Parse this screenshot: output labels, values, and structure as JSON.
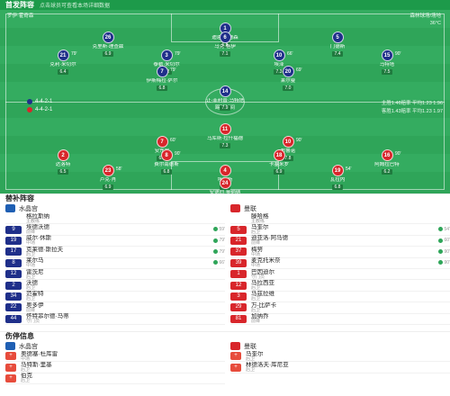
{
  "header": {
    "title": "首发阵容",
    "subtitle": "点击球员可查看本场详细数据"
  },
  "pitch": {
    "home_info_left": "罗伊·霍奇森",
    "home_info_right": "森林球场/场地",
    "away_info_right": "36°C",
    "home_formation": "4-4-2-1",
    "away_formation": "4-4-2-1",
    "home_stats": "主胜1.46赔率  平均1.23 1.96",
    "away_stats": "客胜1.43赔率  平均1.23 1.97",
    "center_label": "踢球时间",
    "top_players": [
      {
        "num": "1",
        "name": "迪恩·亨德森",
        "rating": "6.8",
        "extra": ""
      },
      {
        "num": "26",
        "name": "克里斯·理查兹",
        "rating": "6.9",
        "extra": ""
      },
      {
        "num": "6",
        "name": "马克·格伊",
        "rating": "7.1",
        "extra": ""
      },
      {
        "num": "5",
        "name": "门德斯",
        "rating": "7.4",
        "extra": ""
      },
      {
        "num": "21",
        "name": "克利·米切尔",
        "rating": "6.4",
        "extra": "79'"
      },
      {
        "num": "3",
        "name": "泰勒·米切尔",
        "rating": "7.2",
        "extra": "79'"
      },
      {
        "num": "10",
        "name": "埃泽",
        "rating": "7.3",
        "extra": "66'"
      },
      {
        "num": "15",
        "name": "马特塔",
        "rating": "7.5",
        "extra": "90'"
      },
      {
        "num": "7",
        "name": "伊斯梅拉·萨尔",
        "rating": "6.8",
        "extra": "79'"
      },
      {
        "num": "20",
        "name": "莱尔曼",
        "rating": "7.0",
        "extra": "69'"
      },
      {
        "num": "14",
        "name": "让-菲利普·马特塔",
        "rating": "7.9",
        "extra": ""
      }
    ],
    "bottom_players": [
      {
        "num": "11",
        "name": "马库斯·拉什福德",
        "rating": "7.3",
        "extra": ""
      },
      {
        "num": "7",
        "name": "安东尼",
        "rating": "6.6",
        "extra": "60'"
      },
      {
        "num": "10",
        "name": "布鲁诺",
        "rating": "7.8",
        "extra": "90'"
      },
      {
        "num": "2",
        "name": "达洛特",
        "rating": "6.5",
        "extra": ""
      },
      {
        "num": "8",
        "name": "费尔南德斯",
        "rating": "6.8",
        "extra": "90'"
      },
      {
        "num": "18",
        "name": "卡塞米罗",
        "rating": "6.9",
        "extra": ""
      },
      {
        "num": "16",
        "name": "阿姆拉巴特",
        "rating": "6.2",
        "extra": "90'"
      },
      {
        "num": "23",
        "name": "卢克·肖",
        "rating": "6.9",
        "extra": "58'"
      },
      {
        "num": "4",
        "name": "埃文斯",
        "rating": "7.5",
        "extra": ""
      },
      {
        "num": "19",
        "name": "瓦拉内",
        "rating": "6.8",
        "extra": "54'"
      },
      {
        "num": "24",
        "name": "安德烈·奥纳纳",
        "rating": "6.6",
        "extra": ""
      }
    ]
  },
  "subs": {
    "title": "替补阵容",
    "home": {
      "team": "水晶宫",
      "coach": "格拉斯纳",
      "coach_role": "主教练",
      "rows": [
        {
          "num": "9",
          "name": "埃德沃德",
          "pos": "前锋",
          "tag": "59'"
        },
        {
          "num": "19",
          "name": "威尔·休斯",
          "pos": "中场",
          "tag": "79'"
        },
        {
          "num": "17",
          "name": "克莱德·斯拉夫",
          "pos": "后卫",
          "tag": "79'"
        },
        {
          "num": "8",
          "name": "莱尔马",
          "pos": "中场",
          "tag": "66'"
        },
        {
          "num": "12",
          "name": "雷茨尼",
          "pos": "后卫",
          "tag": ""
        },
        {
          "num": "2",
          "name": "沃德",
          "pos": "后卫",
          "tag": ""
        },
        {
          "num": "34",
          "name": "范霍特",
          "pos": "后卫",
          "tag": ""
        },
        {
          "num": "22",
          "name": "奥多伊",
          "pos": "前锋",
          "tag": ""
        },
        {
          "num": "44",
          "name": "怀特菲尔德·马蒂",
          "pos": "守门员",
          "tag": ""
        }
      ]
    },
    "away": {
      "team": "曼联",
      "coach": "滕哈格",
      "coach_role": "主教练",
      "rows": [
        {
          "num": "5",
          "name": "马奎尔",
          "pos": "后卫",
          "tag": "54'"
        },
        {
          "num": "21",
          "name": "迪亚洛·阿马德",
          "pos": "前锋",
          "tag": "60'"
        },
        {
          "num": "37",
          "name": "梅努",
          "pos": "中场",
          "tag": "90'"
        },
        {
          "num": "39",
          "name": "麦克托米奈",
          "pos": "中场",
          "tag": "90'"
        },
        {
          "num": "1",
          "name": "巴因迪尔",
          "pos": "守门员",
          "tag": ""
        },
        {
          "num": "12",
          "name": "马拉西亚",
          "pos": "后卫",
          "tag": ""
        },
        {
          "num": "3",
          "name": "马兹拉维",
          "pos": "后卫",
          "tag": ""
        },
        {
          "num": "29",
          "name": "万-比萨卡",
          "pos": "后卫",
          "tag": ""
        },
        {
          "num": "81",
          "name": "加纳乔",
          "pos": "前锋",
          "tag": ""
        }
      ]
    }
  },
  "injuries": {
    "title": "伤停信息",
    "home": {
      "team": "水晶宫",
      "rows": [
        {
          "name": "奥德塞·杜库雷",
          "pos": "中场"
        },
        {
          "name": "马特斯·里基",
          "pos": "后卫"
        },
        {
          "name": "伯克",
          "pos": "后卫"
        }
      ]
    },
    "away": {
      "team": "曼联",
      "rows": [
        {
          "name": "马奎尔",
          "pos": "后卫"
        },
        {
          "name": "林德洛夫·库尼亚",
          "pos": "后卫"
        }
      ]
    }
  },
  "colors": {
    "green": "#1d9a4a",
    "blue": "#1f2f8a",
    "red": "#d8262b"
  }
}
